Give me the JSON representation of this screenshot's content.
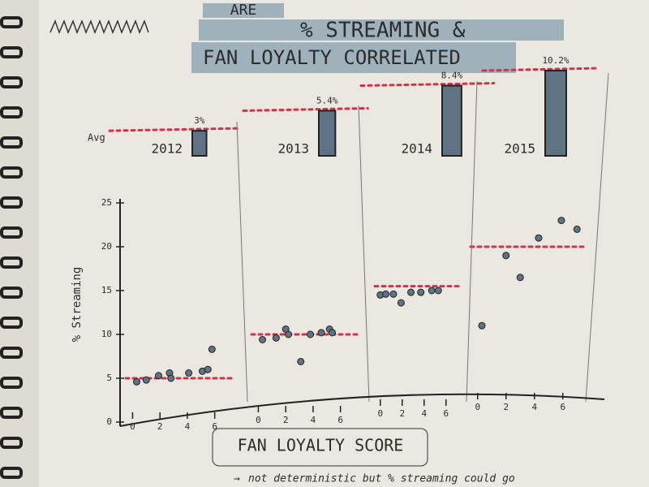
{
  "chart_data": [
    {
      "type": "bar",
      "title_lines": [
        "ARE",
        "% STREAMING &",
        "FAN LOYALTY CORRELATED"
      ],
      "annotation": "Avg",
      "categories": [
        "2012",
        "2013",
        "2014",
        "2015"
      ],
      "values": [
        3,
        5.4,
        8.4,
        10.2
      ],
      "value_labels": [
        "3%",
        "5.4%",
        "8.4%",
        "10.2%"
      ],
      "color": "#5f7384",
      "line_color": "#d0344c"
    },
    {
      "type": "scatter",
      "y_label": "% Streaming",
      "x_label": "FAN LOYALTY SCORE",
      "note": "not deterministic but % streaming could go",
      "ylim": [
        0,
        25
      ],
      "yticks": [
        0,
        5,
        10,
        15,
        20,
        25
      ],
      "xlim": [
        -0.5,
        7.5
      ],
      "xticks": [
        0,
        2,
        4,
        6
      ],
      "color": "#5f7384",
      "line_color": "#d0344c",
      "series": [
        {
          "x": [
            0.3,
            1,
            1.9,
            2.7,
            2.8,
            4.1,
            5.1,
            5.5,
            5.8
          ],
          "values": [
            4.6,
            4.8,
            5.3,
            5.6,
            5,
            5.6,
            5.8,
            6,
            8.3
          ],
          "average": 5
        },
        {
          "x": [
            0.3,
            1.3,
            2,
            2.2,
            3.1,
            3.8,
            4.6,
            5.2,
            5.4
          ],
          "values": [
            9.4,
            9.6,
            10.6,
            10,
            6.9,
            10,
            10.2,
            10.6,
            10.2
          ],
          "average": 10
        },
        {
          "x": [
            0,
            0.5,
            1.2,
            1.9,
            2.8,
            3.7,
            4.7,
            5.3
          ],
          "values": [
            14.5,
            14.6,
            14.6,
            13.6,
            14.8,
            14.8,
            15,
            15
          ],
          "average": 15.5
        },
        {
          "x": [
            0.3,
            2,
            3,
            4.3,
            5.9,
            7
          ],
          "values": [
            11,
            19,
            16.5,
            21,
            23,
            22
          ],
          "average": 20
        }
      ]
    }
  ]
}
